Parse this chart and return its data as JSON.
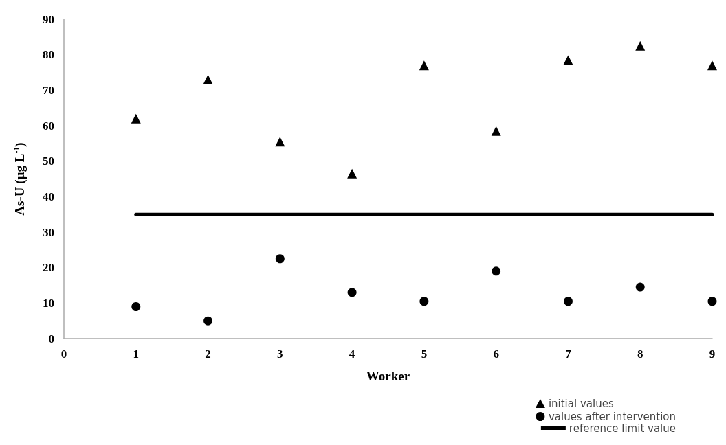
{
  "chart_data": {
    "type": "scatter",
    "xlabel": "Worker",
    "ylabel": "As-U (µg L$^{-1}$)",
    "x": [
      1,
      2,
      3,
      4,
      5,
      6,
      7,
      8,
      9
    ],
    "series": [
      {
        "name": "initial values",
        "color": "#000000",
        "marker": "triangle",
        "values": [
          62,
          73,
          55.5,
          46.5,
          77,
          58.5,
          78.5,
          82.5,
          77
        ]
      },
      {
        "name": "values after intervention",
        "color": "#000000",
        "marker": "circle",
        "values": [
          9,
          5,
          22.5,
          13,
          10.5,
          19,
          10.5,
          14.5,
          10.5
        ]
      },
      {
        "name": "reference limit value",
        "type": "line",
        "color": "#000000",
        "marker": "none",
        "line_style": "solid",
        "x": [
          1,
          9
        ],
        "values": [
          35,
          35
        ]
      }
    ],
    "xlim": [
      0,
      9
    ],
    "xticks": [
      0,
      1,
      2,
      3,
      4,
      5,
      6,
      7,
      8,
      9
    ],
    "ylim": [
      0,
      90
    ],
    "yticks": [
      0,
      10,
      20,
      30,
      40,
      50,
      60,
      70,
      80,
      90
    ],
    "grid": false,
    "legend": "bottom right"
  }
}
